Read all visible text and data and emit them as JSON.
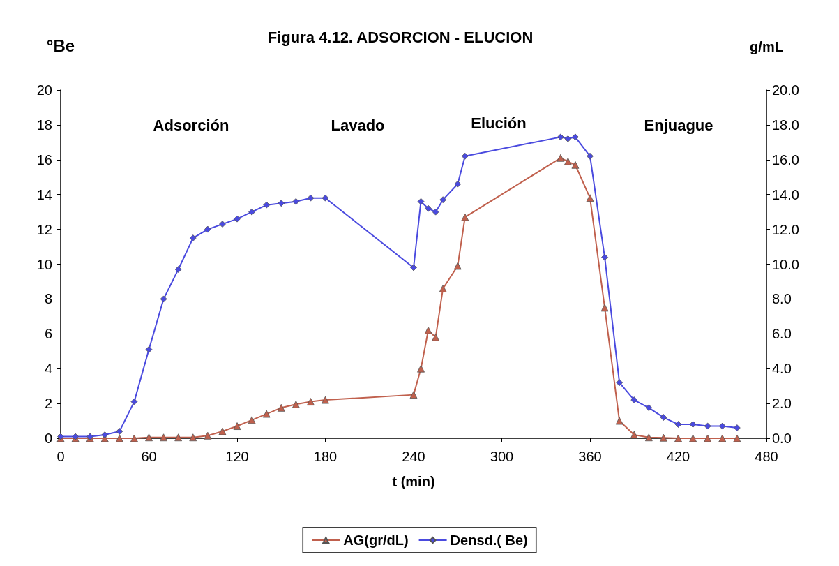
{
  "chart_data": {
    "type": "line",
    "title": "Figura 4.12. ADSORCION - ELUCION",
    "xlabel": "t (min)",
    "ylabel": "°Be",
    "y2label": "g/mL",
    "xlim": [
      0,
      480
    ],
    "xticks": [
      0,
      60,
      120,
      180,
      240,
      300,
      360,
      420,
      480
    ],
    "ylim": [
      0,
      20
    ],
    "yticks": [
      0,
      2,
      4,
      6,
      8,
      10,
      12,
      14,
      16,
      18,
      20
    ],
    "y2lim": [
      0,
      20
    ],
    "y2ticks": [
      {
        "value": 0,
        "label": "0.0"
      },
      {
        "value": 2,
        "label": "2.0"
      },
      {
        "value": 4,
        "label": "4.0"
      },
      {
        "value": 6,
        "label": "6.0"
      },
      {
        "value": 8,
        "label": "8.0"
      },
      {
        "value": 10,
        "label": "10.0"
      },
      {
        "value": 12,
        "label": "12.0"
      },
      {
        "value": 14,
        "label": "14.0"
      },
      {
        "value": 16,
        "label": "16.0"
      },
      {
        "value": 18,
        "label": "18.0"
      },
      {
        "value": 20,
        "label": "20.0"
      }
    ],
    "grid": false,
    "legend": "bottom",
    "line_style": "solid",
    "annotations": [
      "Adsorción",
      "Lavado",
      "Elución",
      "Enjuague"
    ],
    "series": [
      {
        "name": "AG(gr/dL)",
        "color": "#c0604d",
        "marker": "triangle",
        "x": [
          0,
          10,
          20,
          30,
          40,
          50,
          60,
          70,
          80,
          90,
          100,
          110,
          120,
          130,
          140,
          150,
          160,
          170,
          180,
          240,
          245,
          250,
          255,
          260,
          270,
          275,
          340,
          345,
          350,
          360,
          370,
          380,
          390,
          400,
          410,
          420,
          430,
          440,
          450,
          460
        ],
        "values": [
          0,
          0,
          0,
          0,
          0,
          0,
          0.05,
          0.05,
          0.05,
          0.05,
          0.15,
          0.4,
          0.7,
          1.05,
          1.4,
          1.75,
          1.95,
          2.1,
          2.2,
          2.5,
          4.0,
          6.2,
          5.8,
          8.6,
          9.9,
          12.7,
          16.1,
          15.9,
          15.7,
          13.8,
          7.5,
          1.0,
          0.2,
          0.05,
          0.03,
          0,
          0,
          0,
          0,
          0
        ]
      },
      {
        "name": "Densd.( Be)",
        "color": "#4a4adf",
        "marker": "diamond",
        "x": [
          0,
          10,
          20,
          30,
          40,
          50,
          60,
          70,
          80,
          90,
          100,
          110,
          120,
          130,
          140,
          150,
          160,
          170,
          180,
          240,
          245,
          250,
          255,
          260,
          270,
          275,
          340,
          345,
          350,
          360,
          370,
          380,
          390,
          400,
          410,
          420,
          430,
          440,
          450,
          460
        ],
        "values": [
          0.1,
          0.1,
          0.1,
          0.2,
          0.4,
          2.1,
          5.1,
          8.0,
          9.7,
          11.5,
          12.0,
          12.3,
          12.6,
          13.0,
          13.4,
          13.5,
          13.6,
          13.8,
          13.8,
          9.8,
          13.6,
          13.2,
          13.0,
          13.7,
          14.6,
          16.2,
          17.3,
          17.2,
          17.3,
          16.2,
          10.4,
          3.2,
          2.2,
          1.75,
          1.2,
          0.8,
          0.8,
          0.7,
          0.7,
          0.6
        ]
      }
    ]
  }
}
